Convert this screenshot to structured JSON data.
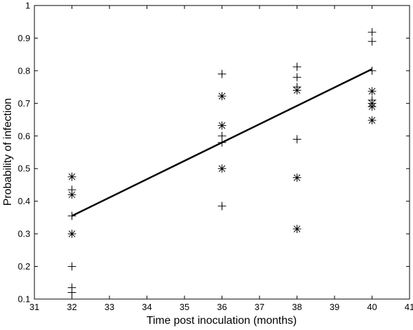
{
  "chart_data": {
    "type": "scatter",
    "title": "",
    "xlabel": "Time post inoculation (months)",
    "ylabel": "Probability of infection",
    "xlim": [
      31,
      41
    ],
    "ylim": [
      0.1,
      1
    ],
    "xticks": [
      "31",
      "32",
      "33",
      "34",
      "35",
      "36",
      "37",
      "38",
      "39",
      "40",
      "41"
    ],
    "yticks": [
      "0.1",
      "0.2",
      "0.3",
      "0.4",
      "0.5",
      "0.6",
      "0.7",
      "0.8",
      "0.9",
      "1"
    ],
    "grid": false,
    "series": [
      {
        "marker": "plus",
        "points": [
          [
            32,
            0.12
          ],
          [
            32,
            0.135
          ],
          [
            32,
            0.2
          ],
          [
            32,
            0.355
          ],
          [
            32,
            0.435
          ],
          [
            36,
            0.385
          ],
          [
            36,
            0.58
          ],
          [
            36,
            0.6
          ],
          [
            36,
            0.79
          ],
          [
            38,
            0.59
          ],
          [
            38,
            0.75
          ],
          [
            38,
            0.78
          ],
          [
            38,
            0.812
          ],
          [
            40,
            0.69
          ],
          [
            40,
            0.71
          ],
          [
            40,
            0.8
          ],
          [
            40,
            0.89
          ],
          [
            40,
            0.918
          ]
        ]
      },
      {
        "marker": "asterisk",
        "points": [
          [
            32,
            0.3
          ],
          [
            32,
            0.42
          ],
          [
            32,
            0.475
          ],
          [
            36,
            0.5
          ],
          [
            36,
            0.632
          ],
          [
            36,
            0.722
          ],
          [
            38,
            0.315
          ],
          [
            38,
            0.472
          ],
          [
            38,
            0.74
          ],
          [
            40,
            0.648
          ],
          [
            40,
            0.69
          ],
          [
            40,
            0.7
          ],
          [
            40,
            0.737
          ]
        ]
      },
      {
        "type": "line",
        "style": "thick-solid",
        "points": [
          [
            32,
            0.355
          ],
          [
            40,
            0.805
          ]
        ]
      }
    ]
  }
}
